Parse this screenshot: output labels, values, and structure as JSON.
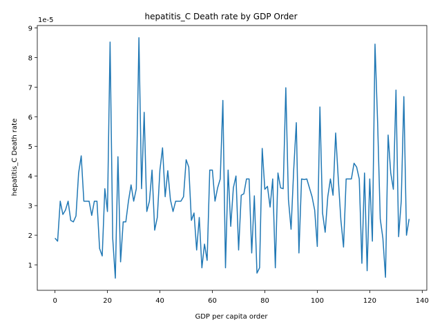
{
  "chart_data": {
    "type": "line",
    "title": "hepatitis_C Death rate by GDP Order",
    "xlabel": "GDP per capita order",
    "ylabel": "hepatitis_C Death rate",
    "offset_label": "1e-5",
    "xlim": [
      -6.75,
      141.75
    ],
    "xticks": [
      0,
      20,
      40,
      60,
      80,
      100,
      120,
      140
    ],
    "ylim": [
      0.14,
      9.08
    ],
    "yticks": [
      1,
      2,
      3,
      4,
      5,
      6,
      7,
      8,
      9
    ],
    "series": [
      {
        "color": "#1f77b4",
        "x": [
          0,
          1,
          2,
          3,
          4,
          5,
          6,
          7,
          8,
          9,
          10,
          11,
          12,
          13,
          14,
          15,
          16,
          17,
          18,
          19,
          20,
          21,
          22,
          23,
          24,
          25,
          26,
          27,
          28,
          29,
          30,
          31,
          32,
          33,
          34,
          35,
          36,
          37,
          38,
          39,
          40,
          41,
          42,
          43,
          44,
          45,
          46,
          47,
          48,
          49,
          50,
          51,
          52,
          53,
          54,
          55,
          56,
          57,
          58,
          59,
          60,
          61,
          62,
          63,
          64,
          65,
          66,
          67,
          68,
          69,
          70,
          71,
          72,
          73,
          74,
          75,
          76,
          77,
          78,
          79,
          80,
          81,
          82,
          83,
          84,
          85,
          86,
          87,
          88,
          89,
          90,
          91,
          92,
          93,
          94,
          95,
          96,
          97,
          98,
          99,
          100,
          101,
          102,
          103,
          104,
          105,
          106,
          107,
          108,
          109,
          110,
          111,
          112,
          113,
          114,
          115,
          116,
          117,
          118,
          119,
          120,
          121,
          122,
          123,
          124,
          125,
          126,
          127,
          128,
          129,
          130,
          131,
          132,
          133,
          134,
          135
        ],
        "values": [
          1.9,
          1.8,
          3.15,
          2.7,
          2.85,
          3.15,
          2.5,
          2.45,
          2.65,
          4.1,
          4.68,
          3.15,
          3.15,
          3.15,
          2.67,
          3.15,
          3.15,
          1.55,
          1.3,
          3.57,
          2.8,
          8.52,
          1.9,
          0.55,
          4.65,
          1.1,
          2.45,
          2.45,
          3.15,
          3.7,
          3.15,
          3.57,
          8.67,
          3.57,
          6.15,
          2.8,
          3.15,
          4.2,
          2.17,
          2.6,
          4.2,
          4.95,
          3.3,
          4.18,
          3.2,
          2.8,
          3.15,
          3.15,
          3.15,
          3.3,
          4.55,
          4.3,
          2.5,
          2.75,
          1.5,
          2.6,
          0.9,
          1.7,
          1.15,
          4.2,
          4.2,
          3.15,
          3.6,
          3.9,
          6.55,
          0.9,
          4.2,
          2.3,
          3.6,
          4.0,
          1.5,
          3.35,
          3.4,
          3.9,
          3.9,
          1.4,
          3.33,
          0.72,
          0.9,
          4.93,
          3.55,
          3.65,
          2.95,
          3.9,
          0.9,
          4.1,
          3.6,
          3.57,
          6.98,
          3.2,
          2.2,
          4.2,
          5.8,
          1.4,
          3.9,
          3.88,
          3.9,
          3.6,
          3.3,
          2.85,
          1.62,
          6.33,
          2.75,
          2.1,
          3.3,
          3.9,
          3.35,
          5.45,
          3.9,
          2.5,
          1.6,
          3.9,
          3.9,
          3.9,
          4.43,
          4.3,
          3.9,
          1.05,
          4.1,
          0.8,
          3.9,
          1.8,
          8.45,
          5.8,
          2.55,
          1.9,
          0.58,
          5.38,
          4.1,
          3.55,
          6.9,
          1.95,
          3.15,
          6.68,
          2.0,
          2.55
        ]
      }
    ]
  }
}
